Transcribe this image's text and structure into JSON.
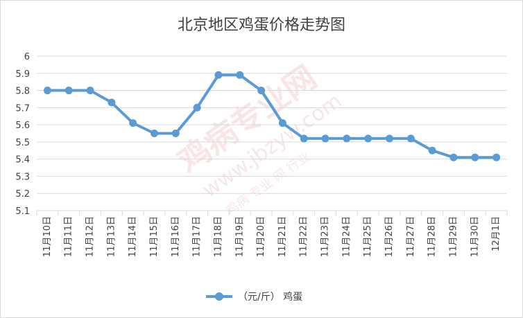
{
  "chart_data": {
    "type": "line",
    "title": "北京地区鸡蛋价格走势图",
    "xlabel": "",
    "ylabel": "",
    "categories": [
      "11月10日",
      "11月11日",
      "11月12日",
      "11月13日",
      "11月14日",
      "11月15日",
      "11月16日",
      "11月17日",
      "11月18日",
      "11月19日",
      "11月20日",
      "11月21日",
      "11月22日",
      "11月23日",
      "11月24日",
      "11月25日",
      "11月26日",
      "11月27日",
      "11月28日",
      "11月29日",
      "11月30日",
      "12月1日"
    ],
    "series": [
      {
        "name": "（元/斤） 鸡蛋",
        "values": [
          5.8,
          5.8,
          5.8,
          5.73,
          5.61,
          5.55,
          5.55,
          5.7,
          5.89,
          5.89,
          5.8,
          5.61,
          5.52,
          5.52,
          5.52,
          5.52,
          5.52,
          5.52,
          5.45,
          5.41,
          5.41,
          5.41
        ]
      }
    ],
    "ylim": [
      5.1,
      6.0
    ],
    "yticks": [
      "5.1",
      "5.2",
      "5.3",
      "5.4",
      "5.5",
      "5.6",
      "5.7",
      "5.8",
      "5.9",
      "6"
    ],
    "grid": true,
    "legend_position": "bottom",
    "colors": {
      "series": "#5b9bd5",
      "grid": "#d9d9d9",
      "text": "#404040"
    }
  },
  "watermark": {
    "text_main": "鸡病专业网",
    "text_url": "www.jbzyw.com",
    "text_sub": "鸡病 专业 网 行业"
  }
}
